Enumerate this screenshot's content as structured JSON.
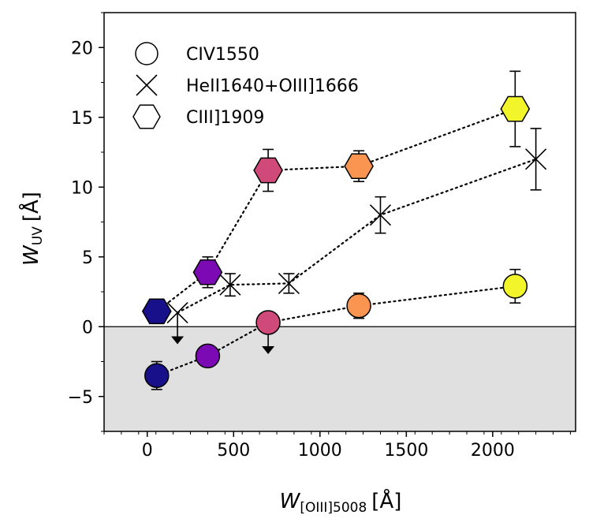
{
  "chart_data": {
    "type": "scatter",
    "xlabel_main": "W",
    "xlabel_sub": "[OIII]5008",
    "xlabel_unit": "[Å]",
    "ylabel_main": "W",
    "ylabel_sub": "UV",
    "ylabel_unit": "[Å]",
    "xlim": [
      -250,
      2480
    ],
    "ylim": [
      -7.5,
      22.5
    ],
    "x_ticks": [
      0,
      500,
      1000,
      1500,
      2000
    ],
    "x_tick_labels": [
      "0",
      "500",
      "1000",
      "1500",
      "2000"
    ],
    "y_ticks": [
      -5,
      0,
      5,
      10,
      15,
      20
    ],
    "y_tick_labels": [
      "−5",
      "0",
      "5",
      "10",
      "15",
      "20"
    ],
    "shaded_region": {
      "y_from": -7.5,
      "y_to": 0,
      "color": "#e0e0e0"
    },
    "zero_line": 0,
    "legend": {
      "placement": "top-left",
      "entries": [
        "CIV1550",
        "HeII1640+OIII]1666",
        "CIII]1909"
      ]
    },
    "bin_colors": [
      "#17108a",
      "#7b0ab5",
      "#cf4a78",
      "#f99451",
      "#f2f52a"
    ],
    "series": [
      {
        "name": "CIV1550",
        "marker": "circle",
        "points": [
          {
            "x": 55,
            "y": -3.5,
            "yerr": 1.0,
            "bin": 0,
            "upper_limit": false
          },
          {
            "x": 350,
            "y": -2.1,
            "yerr": 0,
            "bin": 1,
            "upper_limit": false
          },
          {
            "x": 700,
            "y": 0.3,
            "yerr": 0,
            "bin": 2,
            "upper_limit": true
          },
          {
            "x": 1225,
            "y": 1.5,
            "yerr": 0.9,
            "bin": 3,
            "upper_limit": false
          },
          {
            "x": 2130,
            "y": 2.9,
            "yerr": 1.2,
            "bin": 4,
            "upper_limit": false
          }
        ]
      },
      {
        "name": "HeII1640+OIII]1666",
        "marker": "x",
        "points": [
          {
            "x": 175,
            "y": 1.0,
            "yerr": 0,
            "upper_limit": true
          },
          {
            "x": 480,
            "y": 3.0,
            "yerr": 0.8,
            "upper_limit": false
          },
          {
            "x": 820,
            "y": 3.1,
            "yerr": 0.7,
            "upper_limit": false
          },
          {
            "x": 1350,
            "y": 8.0,
            "yerr": 1.3,
            "upper_limit": false
          },
          {
            "x": 2250,
            "y": 12.0,
            "yerr": 2.2,
            "upper_limit": false
          }
        ]
      },
      {
        "name": "CIII]1909",
        "marker": "hexagon",
        "points": [
          {
            "x": 55,
            "y": 1.1,
            "yerr": 0.5,
            "bin": 0,
            "upper_limit": false
          },
          {
            "x": 350,
            "y": 3.9,
            "yerr": 1.1,
            "bin": 1,
            "upper_limit": false
          },
          {
            "x": 700,
            "y": 11.2,
            "yerr": 1.5,
            "bin": 2,
            "upper_limit": false
          },
          {
            "x": 1225,
            "y": 11.5,
            "yerr": 1.1,
            "bin": 3,
            "upper_limit": false
          },
          {
            "x": 2130,
            "y": 15.6,
            "yerr": 2.7,
            "bin": 4,
            "upper_limit": false
          }
        ]
      }
    ]
  }
}
